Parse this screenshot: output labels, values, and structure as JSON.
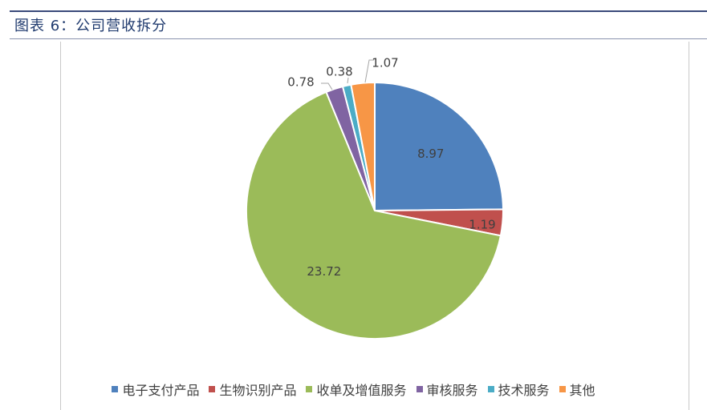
{
  "caption": "图表 6：公司营收拆分",
  "chart_data": {
    "type": "pie",
    "title": "",
    "categories": [
      "电子支付产品",
      "生物识别产品",
      "收单及增值服务",
      "审核服务",
      "技术服务",
      "其他"
    ],
    "values": [
      8.97,
      1.19,
      23.72,
      0.78,
      0.38,
      1.07
    ],
    "value_labels": [
      "8.97",
      "1.19",
      "23.72",
      "0.78",
      "0.38",
      "1.07"
    ],
    "colors": [
      "#4f81bd",
      "#c0504d",
      "#9bbb59",
      "#8064a2",
      "#4bacc6",
      "#f79646"
    ],
    "start_angle_deg": 0,
    "direction": "clockwise",
    "legend_position": "bottom"
  }
}
